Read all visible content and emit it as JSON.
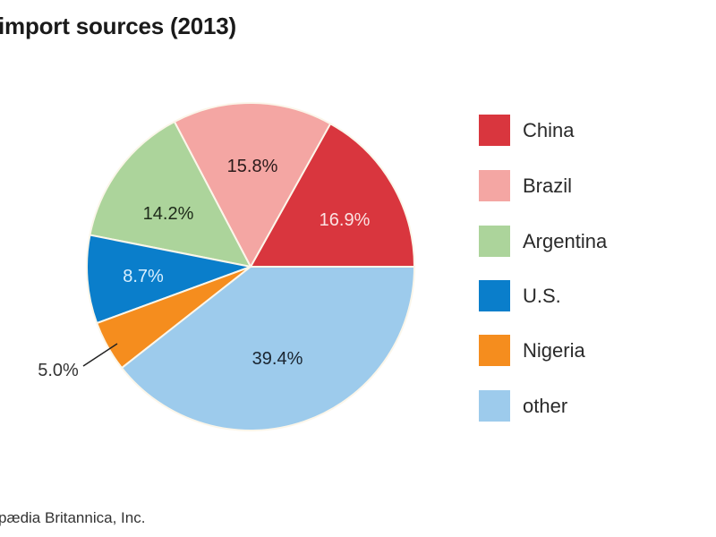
{
  "title": "import sources (2013)",
  "credit": "pædia Britannica, Inc.",
  "legend": {
    "items": [
      {
        "label": "China",
        "color": "#d9363e"
      },
      {
        "label": "Brazil",
        "color": "#f4a6a3"
      },
      {
        "label": "Argentina",
        "color": "#acd49b"
      },
      {
        "label": "U.S.",
        "color": "#0a7ecb"
      },
      {
        "label": "Nigeria",
        "color": "#f58d1e"
      },
      {
        "label": "other",
        "color": "#9dcbec"
      }
    ]
  },
  "slice_labels": {
    "china": "16.9%",
    "brazil": "15.8%",
    "argentina": "14.2%",
    "us": "8.7%",
    "nigeria": "5.0%",
    "other": "39.4%"
  },
  "chart_data": {
    "type": "pie",
    "title": "import sources (2013)",
    "categories": [
      "China",
      "Brazil",
      "Argentina",
      "U.S.",
      "Nigeria",
      "other"
    ],
    "values": [
      16.9,
      15.8,
      14.2,
      8.7,
      5.0,
      39.4
    ],
    "unit": "%",
    "colors": [
      "#d9363e",
      "#f4a6a3",
      "#acd49b",
      "#0a7ecb",
      "#f58d1e",
      "#9dcbec"
    ],
    "start_angle": "3 o'clock",
    "direction": "counter-clockwise",
    "legend_position": "right",
    "source": "pædia Britannica, Inc."
  }
}
